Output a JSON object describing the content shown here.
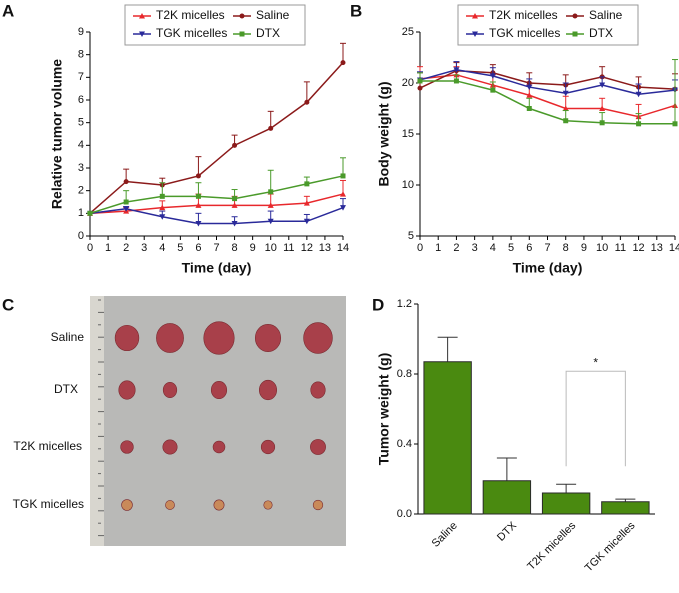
{
  "panel_labels": [
    "A",
    "B",
    "C",
    "D"
  ],
  "photo": {
    "row_labels": [
      "Saline",
      "DTX",
      "T2K micelles",
      "TGK micelles"
    ]
  },
  "chart_data": [
    {
      "type": "line",
      "x_label": "Time (day)",
      "y_label": "Relative tumor volume",
      "x": [
        0,
        2,
        4,
        6,
        8,
        10,
        12,
        14
      ],
      "xlim": [
        0,
        14
      ],
      "xticks": [
        0,
        1,
        2,
        3,
        4,
        5,
        6,
        7,
        8,
        9,
        10,
        11,
        12,
        13,
        14
      ],
      "ylim": [
        0,
        9
      ],
      "yticks": [
        0,
        1,
        2,
        3,
        4,
        5,
        6,
        7,
        8,
        9
      ],
      "series": [
        {
          "name": "T2K micelles",
          "color": "#e8282c",
          "marker": "triangle",
          "values": [
            1,
            1.1,
            1.25,
            1.35,
            1.35,
            1.35,
            1.45,
            1.85
          ],
          "errors": [
            0,
            0.15,
            0.3,
            0.5,
            0.4,
            0.5,
            0.3,
            0.6
          ]
        },
        {
          "name": "Saline",
          "color": "#8b1a1a",
          "marker": "circle",
          "values": [
            1,
            2.4,
            2.25,
            2.65,
            4.0,
            4.75,
            5.9,
            7.65
          ],
          "errors": [
            0,
            0.55,
            0.3,
            0.85,
            0.45,
            0.75,
            0.9,
            0.85
          ]
        },
        {
          "name": "TGK micelles",
          "color": "#2a2a9a",
          "marker": "triangle-down",
          "values": [
            1,
            1.2,
            0.85,
            0.55,
            0.55,
            0.65,
            0.65,
            1.25
          ],
          "errors": [
            0,
            0.1,
            0.25,
            0.45,
            0.3,
            0.45,
            0.3,
            0.4
          ]
        },
        {
          "name": "DTX",
          "color": "#4a9a2a",
          "marker": "square",
          "values": [
            1,
            1.5,
            1.75,
            1.75,
            1.65,
            1.95,
            2.3,
            2.65
          ],
          "errors": [
            0,
            0.5,
            0.6,
            0.6,
            0.4,
            0.95,
            0.3,
            0.8
          ]
        }
      ]
    },
    {
      "type": "line",
      "x_label": "Time (day)",
      "y_label": "Body weight (g)",
      "x": [
        0,
        2,
        4,
        6,
        8,
        10,
        12,
        14
      ],
      "xlim": [
        0,
        14
      ],
      "xticks": [
        0,
        1,
        2,
        3,
        4,
        5,
        6,
        7,
        8,
        9,
        10,
        11,
        12,
        13,
        14
      ],
      "ylim": [
        5,
        25
      ],
      "yticks": [
        5,
        10,
        15,
        20,
        25
      ],
      "series": [
        {
          "name": "T2K micelles",
          "color": "#e8282c",
          "marker": "triangle",
          "values": [
            20.4,
            20.8,
            19.8,
            18.8,
            17.5,
            17.5,
            16.7,
            17.8
          ],
          "errors": [
            1.2,
            0.8,
            1.0,
            1.0,
            1.2,
            1.0,
            1.2,
            1.5
          ]
        },
        {
          "name": "Saline",
          "color": "#8b1a1a",
          "marker": "circle",
          "values": [
            19.5,
            21.2,
            21.0,
            20.0,
            19.8,
            20.6,
            19.6,
            19.4
          ],
          "errors": [
            1.5,
            0.8,
            0.8,
            1.0,
            1.0,
            1.0,
            1.0,
            1.5
          ]
        },
        {
          "name": "TGK micelles",
          "color": "#2a2a9a",
          "marker": "triangle-down",
          "values": [
            20.3,
            21.3,
            20.7,
            19.6,
            19.0,
            19.8,
            18.9,
            19.3
          ],
          "errors": [
            0.8,
            0.8,
            0.8,
            0.8,
            1.0,
            0.8,
            1.0,
            1.0
          ]
        },
        {
          "name": "DTX",
          "color": "#4a9a2a",
          "marker": "square",
          "values": [
            20.2,
            20.2,
            19.3,
            17.5,
            16.3,
            16.1,
            16.0,
            16.0
          ],
          "errors": [
            0.8,
            0.6,
            0.8,
            1.0,
            1.0,
            1.0,
            1.0,
            6.3
          ]
        }
      ]
    },
    {
      "type": "bar",
      "y_label": "Tumor weight (g)",
      "color": "#4a8a10",
      "annotation": "*",
      "categories": [
        "Saline",
        "DTX",
        "T2K micelles",
        "TGK micelles"
      ],
      "values": [
        0.87,
        0.19,
        0.12,
        0.07
      ],
      "errors": [
        0.14,
        0.13,
        0.05,
        0.015
      ],
      "ylim": [
        0,
        1.2
      ],
      "yticks": [
        {
          "value": 0,
          "label": "0.0"
        },
        0.4,
        0.8,
        1.2
      ]
    }
  ]
}
